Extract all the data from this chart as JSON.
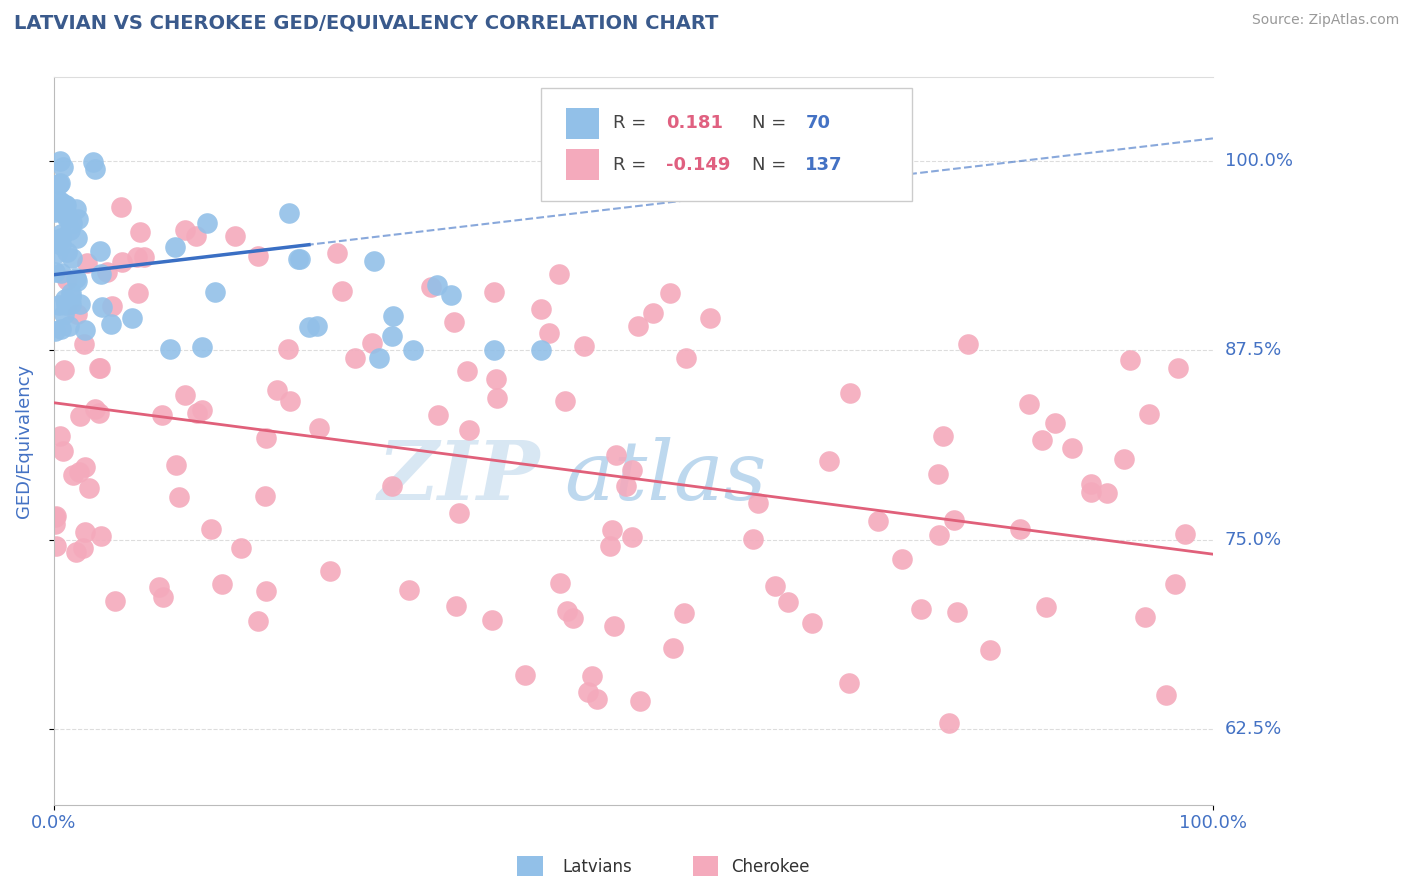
{
  "title": "LATVIAN VS CHEROKEE GED/EQUIVALENCY CORRELATION CHART",
  "source": "Source: ZipAtlas.com",
  "ylabel": "GED/Equivalency",
  "ytick_labels": [
    "62.5%",
    "75.0%",
    "87.5%",
    "100.0%"
  ],
  "ytick_values": [
    0.625,
    0.75,
    0.875,
    1.0
  ],
  "xlim": [
    0.0,
    1.0
  ],
  "ylim": [
    0.575,
    1.055
  ],
  "latvian_R": 0.181,
  "latvian_N": 70,
  "cherokee_R": -0.149,
  "cherokee_N": 137,
  "latvian_color": "#92C0E8",
  "cherokee_color": "#F4AABC",
  "latvian_trend_color": "#3A6FC4",
  "cherokee_trend_color": "#E0607A",
  "background_color": "#FFFFFF",
  "title_color": "#3A5A8C",
  "axis_label_color": "#4472C4",
  "grid_color": "#DDDDDD",
  "legend_border_color": "#CCCCCC",
  "watermark_zip_color": "#C8DDEF",
  "watermark_atlas_color": "#88B8E0"
}
